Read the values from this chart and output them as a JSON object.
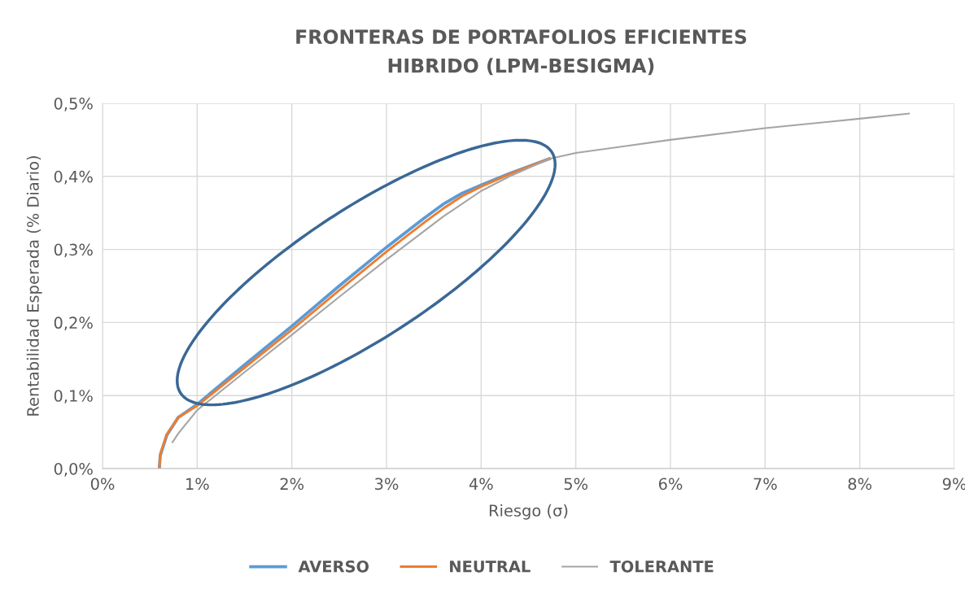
{
  "chart_data": {
    "type": "line",
    "title": "FRONTERAS DE PORTAFOLIOS EFICIENTES\nHIBRIDO (LPM-BESIGMA)",
    "xlabel": "Riesgo (σ)",
    "ylabel": "Rentabilidad Esperada (% Diario)",
    "series": [
      {
        "name": "AVERSO",
        "color": "#5b9bd5",
        "x": [
          0.6,
          0.61,
          0.68,
          0.8,
          1.0,
          1.5,
          2.0,
          2.5,
          3.0,
          3.4,
          3.6,
          3.8,
          4.0,
          4.3,
          4.72
        ],
        "values": [
          0,
          0.018,
          0.046,
          0.07,
          0.088,
          0.142,
          0.195,
          0.25,
          0.303,
          0.343,
          0.362,
          0.377,
          0.388,
          0.404,
          0.424
        ]
      },
      {
        "name": "NEUTRAL",
        "color": "#ed7d31",
        "x": [
          0.6,
          0.61,
          0.68,
          0.8,
          1.0,
          1.5,
          2.0,
          2.5,
          3.0,
          3.4,
          3.6,
          3.8,
          4.0,
          4.3,
          4.72
        ],
        "values": [
          0,
          0.02,
          0.047,
          0.07,
          0.086,
          0.138,
          0.19,
          0.244,
          0.297,
          0.337,
          0.356,
          0.373,
          0.386,
          0.403,
          0.424
        ]
      },
      {
        "name": "TOLERANTE",
        "color": "#a5a5a5",
        "x": [
          0.74,
          0.8,
          1.0,
          1.5,
          2.0,
          2.5,
          3.0,
          3.6,
          4.0,
          4.3,
          4.72,
          5.0,
          6.0,
          7.0,
          8.0,
          8.52
        ],
        "values": [
          0.036,
          0.048,
          0.08,
          0.132,
          0.183,
          0.235,
          0.286,
          0.345,
          0.38,
          0.4,
          0.424,
          0.432,
          0.45,
          0.466,
          0.479,
          0.486
        ]
      }
    ],
    "xlim": [
      0,
      9
    ],
    "xticks": [
      {
        "value": 0,
        "label": "0%"
      },
      {
        "value": 1,
        "label": "1%"
      },
      {
        "value": 2,
        "label": "2%"
      },
      {
        "value": 3,
        "label": "3%"
      },
      {
        "value": 4,
        "label": "4%"
      },
      {
        "value": 5,
        "label": "5%"
      },
      {
        "value": 6,
        "label": "6%"
      },
      {
        "value": 7,
        "label": "7%"
      },
      {
        "value": 8,
        "label": "8%"
      },
      {
        "value": 9,
        "label": "9%"
      }
    ],
    "ylim": [
      0,
      0.5
    ],
    "yticks": [
      {
        "value": 0,
        "label": "0,0%"
      },
      {
        "value": 0.1,
        "label": "0,1%"
      },
      {
        "value": 0.2,
        "label": "0,2%"
      },
      {
        "value": 0.3,
        "label": "0,3%"
      },
      {
        "value": 0.4,
        "label": "0,4%"
      },
      {
        "value": 0.5,
        "label": "0,5%"
      }
    ],
    "grid": true,
    "legend": "bottom",
    "marker": "none",
    "line_style": "solid"
  }
}
